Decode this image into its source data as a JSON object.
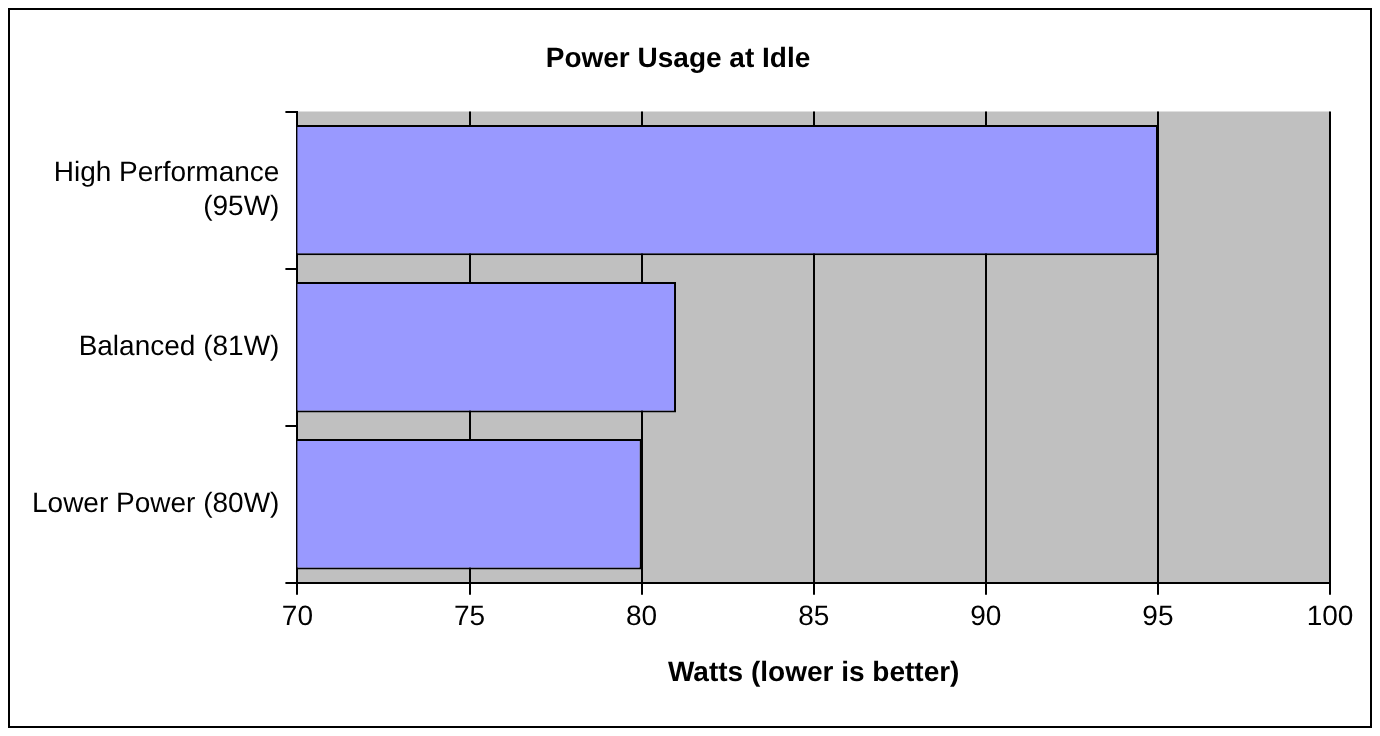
{
  "chart_data": {
    "type": "bar",
    "orientation": "horizontal",
    "title": "Power Usage at Idle",
    "xlabel": "Watts (lower is better)",
    "categories": [
      "High Performance (95W)",
      "Balanced (81W)",
      "Lower Power (80W)"
    ],
    "values": [
      95,
      81,
      80
    ],
    "color": "#9999ff",
    "xlim": [
      70,
      100
    ],
    "xticks": [
      70,
      75,
      80,
      85,
      90,
      95,
      100
    ],
    "grid": "x",
    "legend": false
  }
}
